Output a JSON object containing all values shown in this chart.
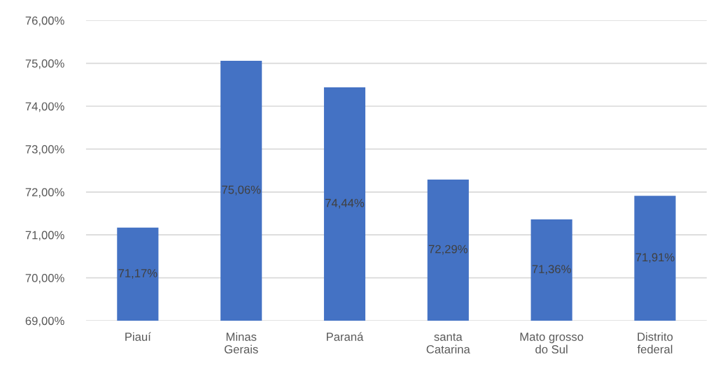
{
  "chart_data": {
    "type": "bar",
    "categories": [
      "Piauí",
      "Minas\nGerais",
      "Paraná",
      "santa\nCatarina",
      "Mato grosso\ndo Sul",
      "Distrito\nfederal"
    ],
    "values": [
      71.17,
      75.06,
      74.44,
      72.29,
      71.36,
      71.91
    ],
    "value_labels": [
      "71,17%",
      "75,06%",
      "74,44%",
      "72,29%",
      "71,36%",
      "71,91%"
    ],
    "color": "#4472c4",
    "ylim": [
      69,
      76
    ],
    "yticks": [
      {
        "value": 69,
        "label": "69,00%"
      },
      {
        "value": 70,
        "label": "70,00%"
      },
      {
        "value": 71,
        "label": "71,00%"
      },
      {
        "value": 72,
        "label": "72,00%"
      },
      {
        "value": 73,
        "label": "73,00%"
      },
      {
        "value": 74,
        "label": "74,00%"
      },
      {
        "value": 75,
        "label": "75,00%"
      },
      {
        "value": 76,
        "label": "76,00%"
      }
    ],
    "grid": "y"
  }
}
